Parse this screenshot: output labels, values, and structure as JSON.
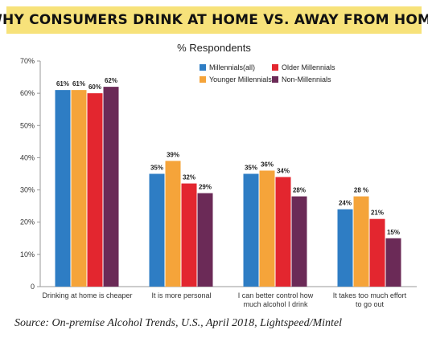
{
  "title": "WHY CONSUMERS DRINK AT HOME VS. AWAY FROM HOME",
  "source": "Source: On-premise Alcohol Trends, U.S., April 2018, Lightspeed/Mintel",
  "colors": {
    "millennials_all": "#2e7dc4",
    "younger_millennials": "#f5a43a",
    "older_millennials": "#e3262f",
    "non_millennials": "#6b2a57"
  },
  "chart_data": {
    "type": "bar",
    "subtitle": "% Respondents",
    "categories": [
      [
        "Drinking at home is cheaper"
      ],
      [
        "It is more personal"
      ],
      [
        "I can better control how",
        "much alcohol I drink"
      ],
      [
        "It takes too much effort",
        "to go out"
      ]
    ],
    "series": [
      {
        "name": "Millennials(all)",
        "color_key": "millennials_all",
        "values": [
          61,
          35,
          35,
          24
        ],
        "labels": [
          "61%",
          "35%",
          "35%",
          "24%"
        ]
      },
      {
        "name": "Younger Millennials",
        "color_key": "younger_millennials",
        "values": [
          61,
          39,
          36,
          28
        ],
        "labels": [
          "61%",
          "39%",
          "36%",
          "28 %"
        ]
      },
      {
        "name": "Older Millennials",
        "color_key": "older_millennials",
        "values": [
          60,
          32,
          34,
          21
        ],
        "labels": [
          "60%",
          "32%",
          "34%",
          "21%"
        ]
      },
      {
        "name": "Non-Millennials",
        "color_key": "non_millennials",
        "values": [
          62,
          29,
          28,
          15
        ],
        "labels": [
          "62%",
          "29%",
          "28%",
          "15%"
        ]
      }
    ],
    "ylim": [
      0,
      70
    ],
    "yticks": [
      0,
      10,
      20,
      30,
      40,
      50,
      60,
      70
    ],
    "ytick_labels": [
      "0",
      "10%",
      "20%",
      "30%",
      "40%",
      "50%",
      "60%",
      "70%"
    ],
    "legend_position": "top-right",
    "grid": false
  }
}
